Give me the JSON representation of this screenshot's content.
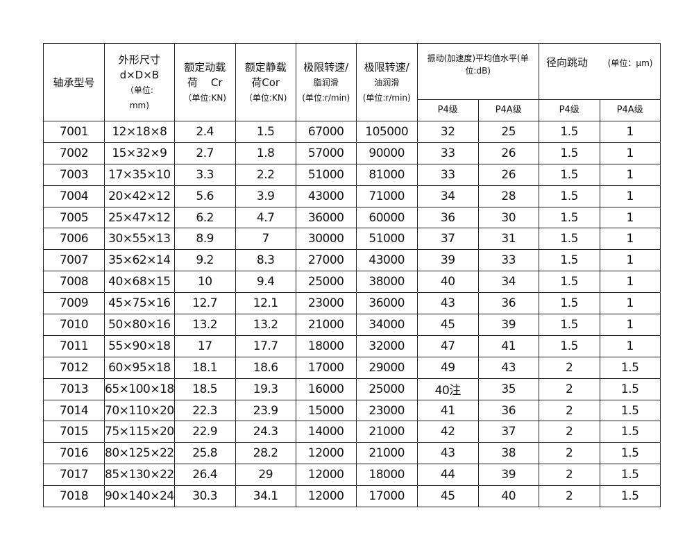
{
  "headers": {
    "model": "轴承型号",
    "size": [
      "外形尺寸",
      "d×D×B",
      "（单位:",
      "mm)"
    ],
    "dynamic_load": [
      "额定动载",
      "荷    Cr",
      "（单位:KN)"
    ],
    "static_load": [
      "额定静载",
      "荷Cor",
      "（单位:KN)"
    ],
    "speed_grease": [
      "极限转速/",
      "脂润滑",
      "(单位:r/min)"
    ],
    "speed_oil": [
      "极限转速/",
      "油润滑",
      "(单位:r/min)"
    ],
    "vibration": "振动(加速度)平均值水平(单位:dB)",
    "runout": "径向跳动",
    "runout_unit": "(单位：µm)",
    "sub": [
      "P4级",
      "P4A级",
      "P4级",
      "P4A级"
    ]
  },
  "rows": [
    [
      "7001",
      "12×18×8",
      "2.4",
      "1.5",
      "67000",
      "105000",
      "32",
      "25",
      "1.5",
      "1"
    ],
    [
      "7002",
      "15×32×9",
      "2.7",
      "1.8",
      "57000",
      "90000",
      "33",
      "26",
      "1.5",
      "1"
    ],
    [
      "7003",
      "17×35×10",
      "3.3",
      "2.2",
      "51000",
      "81000",
      "33",
      "26",
      "1.5",
      "1"
    ],
    [
      "7004",
      "20×42×12",
      "5.6",
      "3.9",
      "43000",
      "71000",
      "34",
      "28",
      "1.5",
      "1"
    ],
    [
      "7005",
      "25×47×12",
      "6.2",
      "4.7",
      "36000",
      "60000",
      "36",
      "30",
      "1.5",
      "1"
    ],
    [
      "7006",
      "30×55×13",
      "8.9",
      "7",
      "30000",
      "51000",
      "37",
      "31",
      "1.5",
      "1"
    ],
    [
      "7007",
      "35×62×14",
      "9.2",
      "8.3",
      "27000",
      "43000",
      "39",
      "33",
      "1.5",
      "1"
    ],
    [
      "7008",
      "40×68×15",
      "10",
      "9.4",
      "25000",
      "38000",
      "40",
      "34",
      "1.5",
      "1"
    ],
    [
      "7009",
      "45×75×16",
      "12.7",
      "12.1",
      "23000",
      "36000",
      "43",
      "36",
      "1.5",
      "1"
    ],
    [
      "7010",
      "50×80×16",
      "13.2",
      "13.2",
      "21000",
      "34000",
      "45",
      "39",
      "1.5",
      "1"
    ],
    [
      "7011",
      "55×90×18",
      "17",
      "17.7",
      "18000",
      "32000",
      "47",
      "41",
      "1.5",
      "1"
    ],
    [
      "7012",
      "60×95×18",
      "18.1",
      "18.6",
      "17000",
      "29000",
      "49",
      "43",
      "2",
      "1.5"
    ],
    [
      "7013",
      "65×100×18",
      "18.5",
      "19.3",
      "16000",
      "25000",
      "40注",
      "35",
      "2",
      "1.5"
    ],
    [
      "7014",
      "70×110×20",
      "22.3",
      "23.9",
      "15000",
      "23000",
      "41",
      "36",
      "2",
      "1.5"
    ],
    [
      "7015",
      "75×115×20",
      "22.9",
      "24.3",
      "14000",
      "21000",
      "42",
      "37",
      "2",
      "1.5"
    ],
    [
      "7016",
      "80×125×22",
      "25.8",
      "28.2",
      "12000",
      "21000",
      "43",
      "38",
      "2",
      "1.5"
    ],
    [
      "7017",
      "85×130×22",
      "26.4",
      "29",
      "12000",
      "18000",
      "44",
      "39",
      "2",
      "1.5"
    ],
    [
      "7018",
      "90×140×24",
      "30.3",
      "34.1",
      "12000",
      "17000",
      "45",
      "40",
      "2",
      "1.5"
    ]
  ]
}
